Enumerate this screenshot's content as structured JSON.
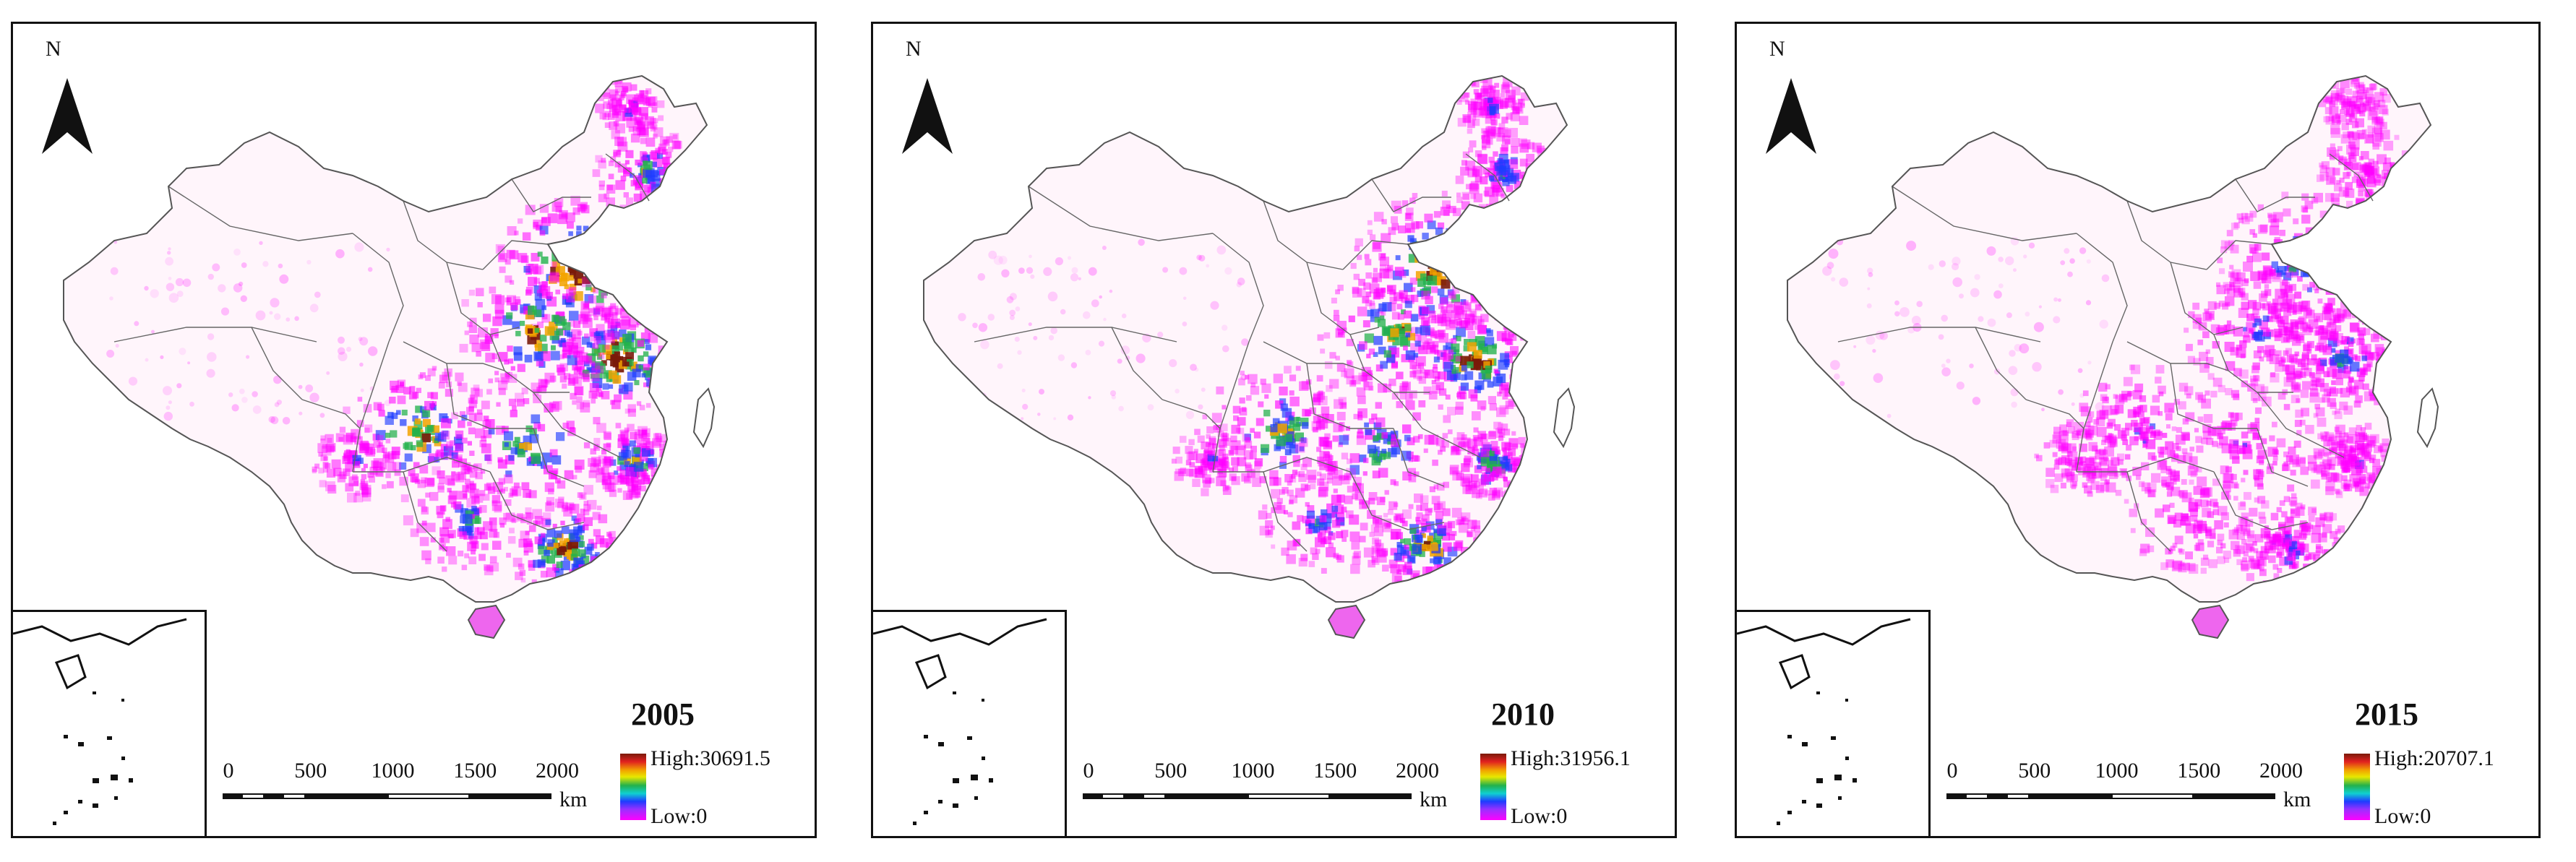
{
  "panels": [
    {
      "year": "2005",
      "north": "N",
      "legend_high": "High:30691.5",
      "legend_low": "Low:0",
      "intensity": 1.0
    },
    {
      "year": "2010",
      "north": "N",
      "legend_high": "High:31956.1",
      "legend_low": "Low:0",
      "intensity": 0.9
    },
    {
      "year": "2015",
      "north": "N",
      "legend_high": "High:20707.1",
      "legend_low": "Low:0",
      "intensity": 0.55
    }
  ],
  "scale_bar": {
    "ticks": [
      "0",
      "500",
      "1000",
      "1500",
      "2000"
    ],
    "unit": "km"
  },
  "colors": {
    "high": "#7a1a0a",
    "mid_high": "#f2a300",
    "mid": "#22b14c",
    "mid_low": "#1e3cff",
    "low": "#ff00ff",
    "background": "#fff5fb"
  }
}
